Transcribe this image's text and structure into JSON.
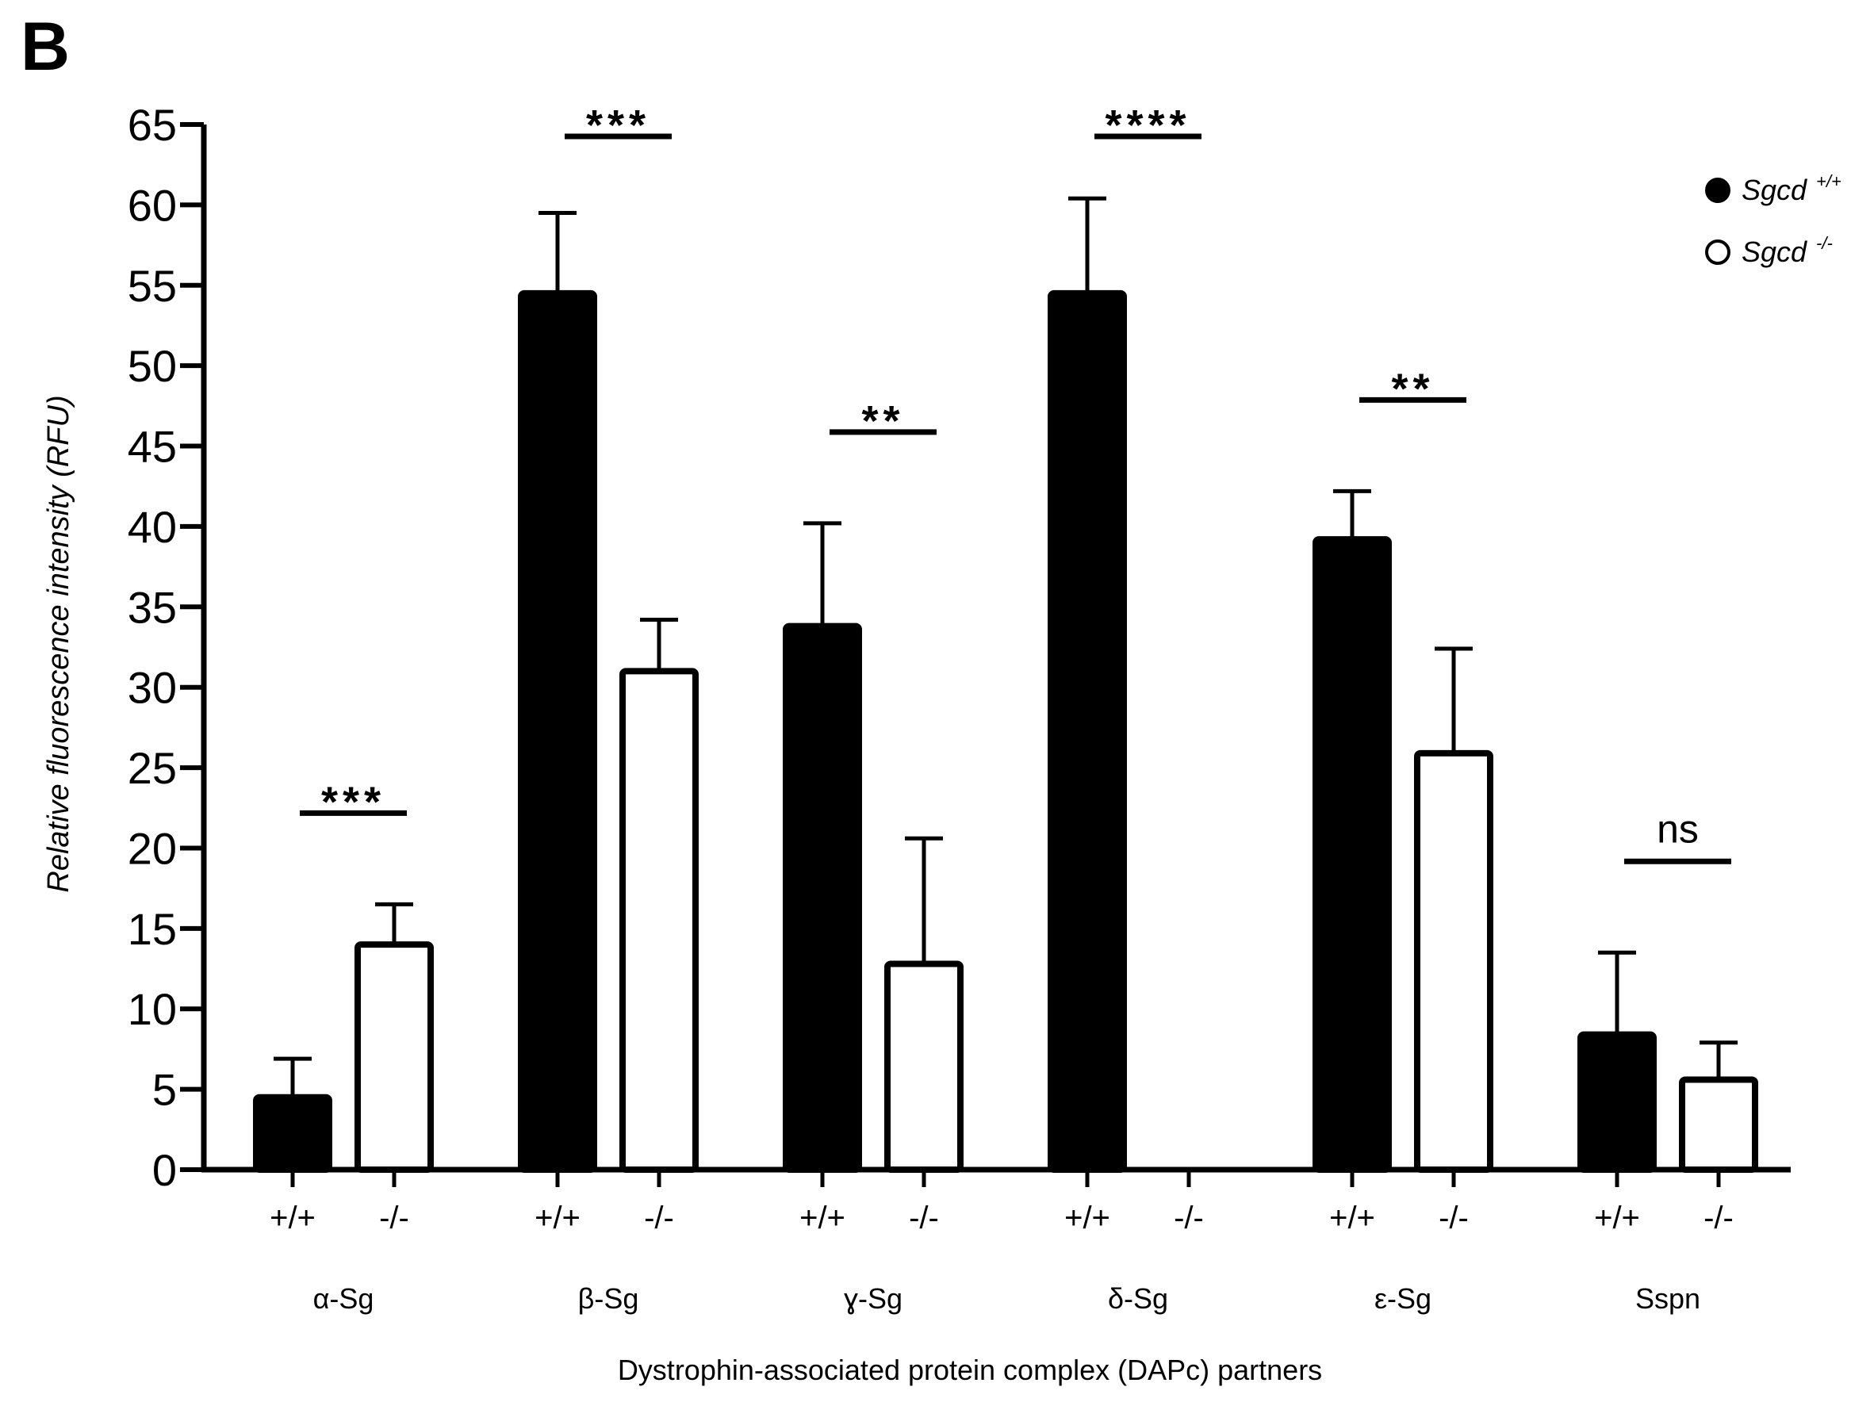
{
  "panel_label": "B",
  "colors": {
    "wildtype": "#000000",
    "knockout": "#ffffff",
    "stroke": "#000000"
  },
  "chart_data": {
    "type": "bar",
    "title": "",
    "xlabel": "Dystrophin-associated protein complex (DAPc) partners",
    "ylabel": "Relative fluorescence intensity (RFU)",
    "ylim": [
      0,
      65
    ],
    "yticks": [
      0,
      5,
      10,
      15,
      20,
      25,
      30,
      35,
      40,
      45,
      50,
      55,
      60,
      65
    ],
    "genotype_labels": [
      "+/+",
      "-/-"
    ],
    "categories": [
      "α-Sg",
      "β-Sg",
      "ɣ-Sg",
      "δ-Sg",
      "ε-Sg",
      "Sspn"
    ],
    "series": [
      {
        "name": "Sgcd",
        "superscript": "+/+",
        "fill": "black",
        "values": [
          4.5,
          54.5,
          33.8,
          54.5,
          39.2,
          8.4
        ],
        "errors": [
          2.4,
          5.0,
          6.4,
          5.9,
          3.0,
          5.1
        ]
      },
      {
        "name": "Sgcd",
        "superscript": "-/-",
        "fill": "white",
        "values": [
          14.0,
          31.0,
          12.8,
          0,
          25.9,
          5.6
        ],
        "errors": [
          2.5,
          3.2,
          7.8,
          0,
          6.5,
          2.3
        ]
      }
    ],
    "significance": [
      "***",
      "***",
      "**",
      "****",
      "**",
      "ns"
    ],
    "legend_position": "top-right"
  }
}
